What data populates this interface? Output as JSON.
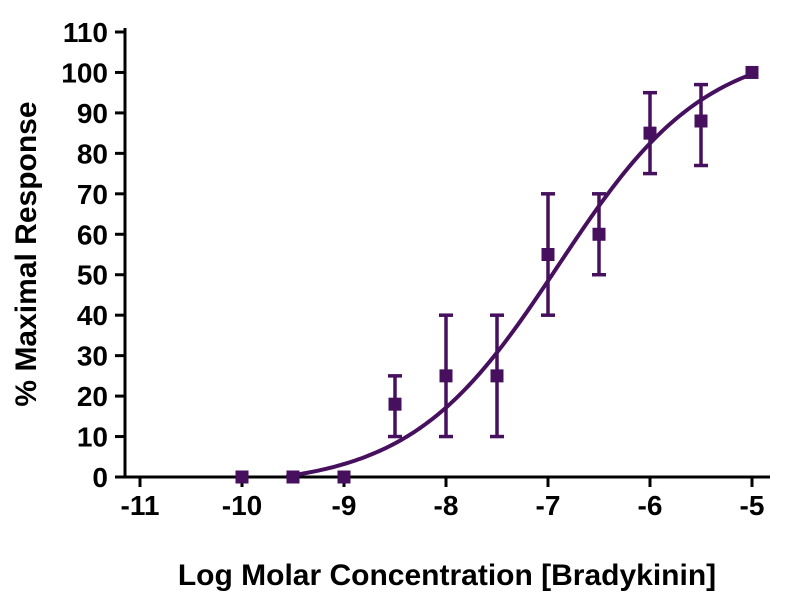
{
  "figure": {
    "background": "#ffffff",
    "axis_color": "#000000",
    "accent_color": "#46105e"
  },
  "chart_data": {
    "type": "scatter",
    "title": "",
    "xlabel": "Log Molar Concentration [Bradykinin]",
    "ylabel": "% Maximal Response",
    "xlim": [
      -11,
      -5
    ],
    "ylim": [
      0,
      110
    ],
    "x_ticks": [
      -11,
      -10,
      -9,
      -8,
      -7,
      -6,
      -5
    ],
    "y_ticks": [
      0,
      10,
      20,
      30,
      40,
      50,
      60,
      70,
      80,
      90,
      100,
      110
    ],
    "grid": false,
    "legend": null,
    "marker": "square",
    "points": [
      {
        "x": -10,
        "y": 0,
        "y_low": null,
        "y_high": null
      },
      {
        "x": -9.5,
        "y": 0,
        "y_low": null,
        "y_high": null
      },
      {
        "x": -9,
        "y": 0,
        "y_low": null,
        "y_high": null
      },
      {
        "x": -8.5,
        "y": 18,
        "y_low": 10,
        "y_high": 25
      },
      {
        "x": -8,
        "y": 25,
        "y_low": 10,
        "y_high": 40
      },
      {
        "x": -7.5,
        "y": 25,
        "y_low": 10,
        "y_high": 40
      },
      {
        "x": -7,
        "y": 55,
        "y_low": 40,
        "y_high": 70
      },
      {
        "x": -6.5,
        "y": 60,
        "y_low": 50,
        "y_high": 70
      },
      {
        "x": -6,
        "y": 85,
        "y_low": 75,
        "y_high": 95
      },
      {
        "x": -5.5,
        "y": 88,
        "y_low": 77,
        "y_high": 97
      },
      {
        "x": -5,
        "y": 100,
        "y_low": null,
        "y_high": null
      }
    ],
    "fit": {
      "model": "4PL",
      "bottom": -2.5,
      "top": 107,
      "logEC50": -6.9,
      "hill": 0.6,
      "x_start": -9.55,
      "x_end": -5
    }
  }
}
